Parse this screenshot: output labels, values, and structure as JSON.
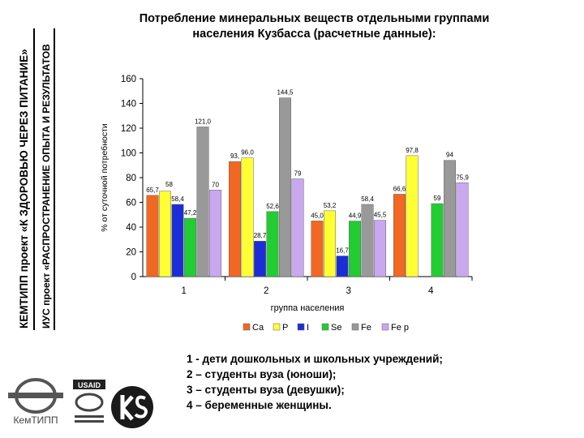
{
  "side_text": {
    "line1": "КЕМТИПП проект «К ЗДОРОВЬЮ ЧЕРЕЗ ПИТАНИЕ»",
    "line2": "ИУС проект «РАСПРОСТРАНЕНИЕ ОПЫТА И РЕЗУЛЬТАТОВ"
  },
  "title": {
    "line1": "Потребление минеральных веществ отдельными группами",
    "line2": "населения Кузбасса (расчетные данные):"
  },
  "notes": [
    "1 - дети дошкольных и школьных учреждений;",
    "2 – студенты вуза (юноши);",
    "3 – студенты вуза (девушки);",
    "4 – беременные женщины."
  ],
  "logos": {
    "kemtipp": "КемТИПП",
    "usaid": "USAID"
  },
  "chart_data": {
    "type": "bar",
    "title": "",
    "ylabel": "% от суточной потребности",
    "xlabel": "группа населения",
    "ylim": [
      0,
      160
    ],
    "yticks": [
      0,
      20,
      40,
      60,
      80,
      100,
      120,
      140,
      160
    ],
    "categories": [
      "1",
      "2",
      "3",
      "4"
    ],
    "legend_position": "bottom",
    "series": [
      {
        "name": "Ca",
        "color": "#f26722",
        "values": [
          65.7,
          93.0,
          45.0,
          66.6
        ],
        "labels": [
          "65,7",
          "93,",
          "45,0",
          "66,6"
        ]
      },
      {
        "name": "P",
        "color": "#ffff33",
        "values": [
          69.0,
          96.0,
          53.2,
          97.8
        ],
        "labels": [
          "",
          "96,0",
          "53,2",
          "97,8"
        ]
      },
      {
        "name": "I",
        "color": "#1d2dd6",
        "values": [
          58.4,
          28.7,
          16.7,
          0
        ],
        "labels": [
          "58,4",
          "28,7",
          "16,7",
          ""
        ]
      },
      {
        "name": "Se",
        "color": "#22cc33",
        "values": [
          47.2,
          52.6,
          44.9,
          59.0
        ],
        "labels": [
          "47,2",
          "52,6",
          "44,9",
          "59"
        ]
      },
      {
        "name": "Fe",
        "color": "#999999",
        "values": [
          121.0,
          144.5,
          58.4,
          94.0
        ],
        "labels": [
          "121,0",
          "144,5",
          "58,4",
          "94"
        ]
      },
      {
        "name": "Fe р",
        "color": "#c9a8f0",
        "values": [
          70.0,
          79.0,
          45.5,
          75.9
        ],
        "labels": [
          "70",
          "79",
          "45,5",
          "75,9"
        ]
      }
    ],
    "extra_labels": [
      "58"
    ]
  }
}
